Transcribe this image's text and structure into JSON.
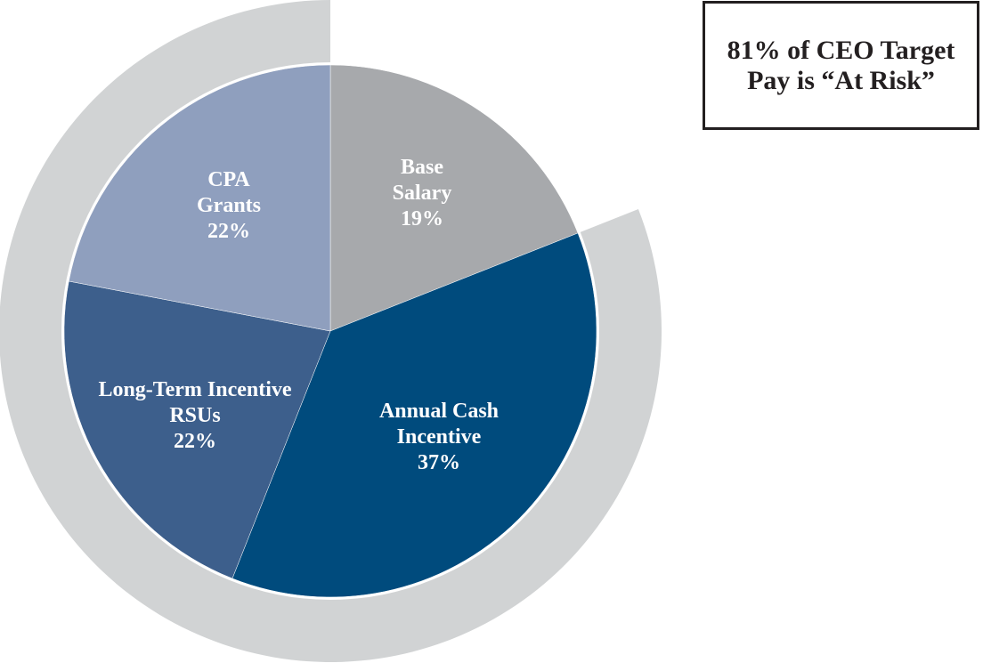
{
  "callout": {
    "line1": "81% of CEO Target",
    "line2": "Pay is “At Risk”"
  },
  "chart_data": {
    "type": "pie",
    "title": "",
    "slices": [
      {
        "name": "Base Salary",
        "label_lines": [
          "Base",
          "Salary",
          "19%"
        ],
        "value": 19,
        "color": "#a7a9ac",
        "at_risk": false
      },
      {
        "name": "Annual Cash Incentive",
        "label_lines": [
          "Annual Cash",
          "Incentive",
          "37%"
        ],
        "value": 37,
        "color": "#004b7d",
        "at_risk": true
      },
      {
        "name": "Long-Term Incentive RSUs",
        "label_lines": [
          "Long-Term Incentive",
          "RSUs",
          "22%"
        ],
        "value": 22,
        "color": "#3d5f8c",
        "at_risk": true
      },
      {
        "name": "CPA Grants",
        "label_lines": [
          "CPA",
          "Grants",
          "22%"
        ],
        "value": 22,
        "color": "#8f9fbe",
        "at_risk": true
      }
    ],
    "start_angle": "12 o'clock",
    "direction": "clockwise",
    "at_risk_ring": {
      "value": 81,
      "color": "#d1d3d4"
    },
    "legend": "none"
  }
}
